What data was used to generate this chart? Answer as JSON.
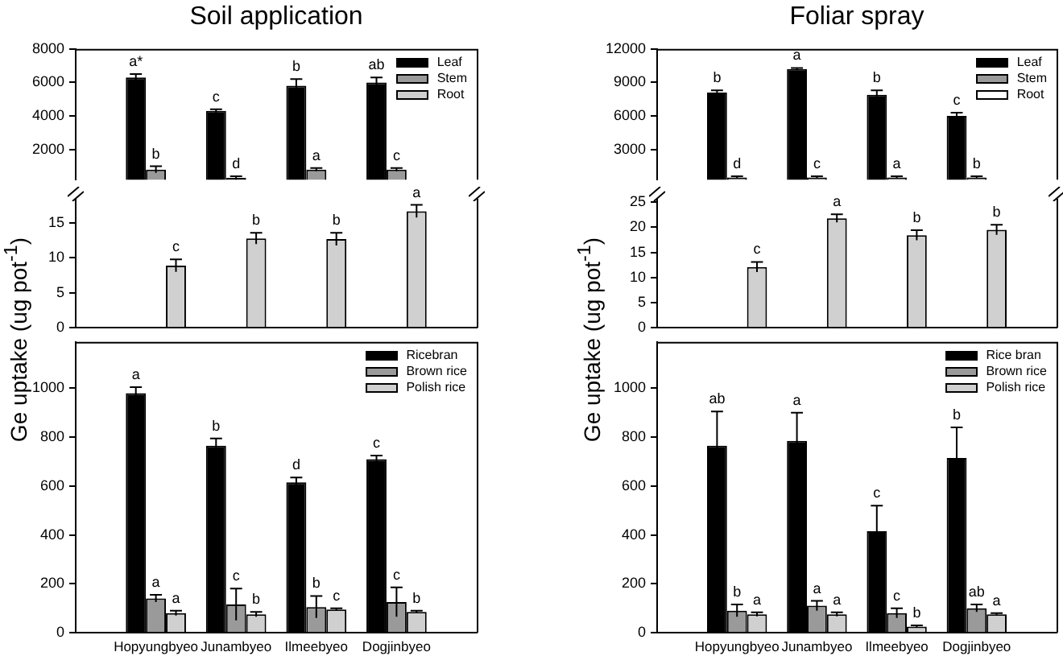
{
  "chart_data": [
    {
      "type": "bar",
      "title": "Soil application",
      "categories": [
        null,
        null,
        null,
        null
      ],
      "tick_labels": "y",
      "ylim": [
        200,
        8000
      ],
      "yticks": [
        2000,
        4000,
        6000,
        8000
      ],
      "legend": "top right",
      "series": [
        {
          "name": "Leaf",
          "color": "#000000",
          "values": [
            6300,
            4300,
            5800,
            6000
          ],
          "errors": [
            200,
            100,
            400,
            300
          ],
          "value_labels": [
            "a*",
            "c",
            "b",
            "ab"
          ]
        },
        {
          "name": "Stem",
          "color": "#9a9a9a",
          "values": [
            800,
            300,
            800,
            800
          ],
          "errors": [
            200,
            100,
            100,
            100
          ],
          "value_labels": [
            "b",
            "d",
            "a",
            "c"
          ]
        },
        {
          "name": "Root",
          "color": "#d0d0d0",
          "values": [
            null,
            null,
            null,
            null
          ]
        }
      ]
    },
    {
      "type": "bar",
      "categories": [
        null,
        null,
        null,
        null
      ],
      "tick_labels": "y",
      "ylim": [
        0,
        18.5
      ],
      "yticks": [
        0,
        5,
        10,
        15
      ],
      "series": [
        {
          "color": "#000000",
          "values": [
            null,
            null,
            null,
            null
          ]
        },
        {
          "color": "#9a9a9a",
          "values": [
            null,
            null,
            null,
            null
          ]
        },
        {
          "color": "#d0d0d0",
          "values": [
            8.9,
            12.8,
            12.7,
            16.7
          ],
          "errors": [
            0.9,
            0.8,
            0.9,
            0.9
          ],
          "value_labels": [
            "c",
            "b",
            "b",
            "a"
          ]
        }
      ]
    },
    {
      "type": "bar",
      "ylabel": "Ge uptake (ug pot$^{-1}$)",
      "categories": [
        "Hopyungbyeo",
        "Junambyeo",
        "Ilmeebyeo",
        "Dogjinbyeo"
      ],
      "ylim": [
        0,
        1190
      ],
      "yticks": [
        0,
        200,
        400,
        600,
        800,
        1000
      ],
      "legend": "top right",
      "series": [
        {
          "name": "Ricebran",
          "color": "#000000",
          "values": [
            980,
            765,
            615,
            710
          ],
          "errors": [
            25,
            30,
            20,
            15
          ],
          "value_labels": [
            "a",
            "b",
            "d",
            "c"
          ]
        },
        {
          "name": "Brown rice",
          "color": "#9a9a9a",
          "values": [
            140,
            115,
            105,
            125
          ],
          "errors": [
            15,
            65,
            45,
            60
          ],
          "value_labels": [
            "a",
            "c",
            "b",
            "c"
          ]
        },
        {
          "name": "Polish rice",
          "color": "#d0d0d0",
          "values": [
            80,
            75,
            95,
            85
          ],
          "errors": [
            10,
            10,
            5,
            5
          ],
          "value_labels": [
            "a",
            "b",
            "c",
            "b"
          ]
        }
      ]
    },
    {
      "type": "bar",
      "title": "Foliar spray",
      "categories": [
        null,
        null,
        null,
        null
      ],
      "tick_labels": "y",
      "ylim": [
        300,
        12000
      ],
      "yticks": [
        3000,
        6000,
        9000,
        12000
      ],
      "legend": "top right",
      "series": [
        {
          "name": "Leaf",
          "color": "#000000",
          "values": [
            8100,
            10200,
            7900,
            6000
          ],
          "errors": [
            200,
            100,
            400,
            300
          ],
          "value_labels": [
            "b",
            "a",
            "b",
            "c"
          ]
        },
        {
          "name": "Stem",
          "color": "#9a9a9a",
          "values": [
            500,
            500,
            500,
            500
          ],
          "errors": [
            100,
            100,
            100,
            100
          ],
          "value_labels": [
            "d",
            "c",
            "a",
            "b"
          ]
        },
        {
          "name": "Root",
          "color": "#ffffff",
          "values": [
            null,
            null,
            null,
            null
          ]
        }
      ]
    },
    {
      "type": "bar",
      "categories": [
        null,
        null,
        null,
        null
      ],
      "tick_labels": "y",
      "ylim": [
        0,
        25.7
      ],
      "yticks": [
        0,
        5,
        10,
        15,
        20,
        25
      ],
      "series": [
        {
          "color": "#000000",
          "values": [
            null,
            null,
            null,
            null
          ]
        },
        {
          "color": "#9a9a9a",
          "values": [
            null,
            null,
            null,
            null
          ]
        },
        {
          "color": "#d0d0d0",
          "values": [
            12.1,
            21.8,
            18.4,
            19.5
          ],
          "errors": [
            1,
            0.8,
            1,
            1
          ],
          "value_labels": [
            "c",
            "a",
            "b",
            "b"
          ]
        }
      ]
    },
    {
      "type": "bar",
      "ylabel": "Ge uptake (ug pot$^{-1}$)",
      "categories": [
        "Hopyungbyeo",
        "Junambyeo",
        "Ilmeebyeo",
        "Dogjinbyeo"
      ],
      "ylim": [
        0,
        1190
      ],
      "yticks": [
        0,
        200,
        400,
        600,
        800,
        1000
      ],
      "legend": "top right",
      "series": [
        {
          "name": "Rice bran",
          "color": "#000000",
          "values": [
            765,
            785,
            415,
            715
          ],
          "errors": [
            140,
            115,
            105,
            125
          ],
          "value_labels": [
            "ab",
            "a",
            "c",
            "b"
          ]
        },
        {
          "name": "Brown rice",
          "color": "#9a9a9a",
          "values": [
            90,
            110,
            80,
            100
          ],
          "errors": [
            25,
            20,
            20,
            15
          ],
          "value_labels": [
            "b",
            "a",
            "c",
            "ab"
          ]
        },
        {
          "name": "Polish rice",
          "color": "#d0d0d0",
          "values": [
            75,
            75,
            25,
            75
          ],
          "errors": [
            8,
            8,
            5,
            5
          ],
          "value_labels": [
            "a",
            "a",
            "b",
            "a"
          ]
        }
      ]
    }
  ]
}
